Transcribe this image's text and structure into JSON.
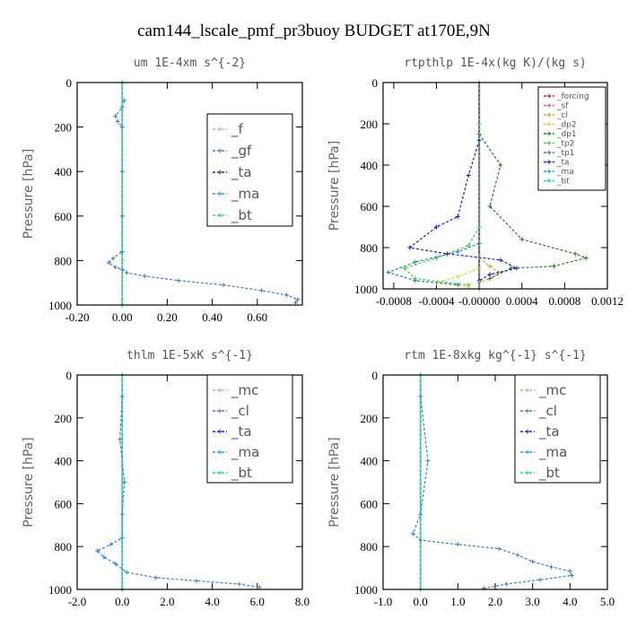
{
  "title": "cam144_lscale_pmf_pr3buoy  BUDGET at170E,9N",
  "chart_data": [
    {
      "type": "line",
      "title": "um   1E-4xm s^{-2}",
      "ylabel": "Pressure [hPa]",
      "xlim": [
        -0.2,
        0.8
      ],
      "ylim": [
        1000,
        0
      ],
      "xticks": [
        "-0.20",
        "0.00",
        "0.20",
        "0.40",
        "0.60"
      ],
      "xtick_values": [
        -0.2,
        0.0,
        0.2,
        0.4,
        0.6
      ],
      "yticks": [
        0,
        200,
        400,
        600,
        800,
        1000
      ],
      "legend_position": "top-right",
      "series": [
        {
          "name": "_f",
          "color": "#7ddb7d",
          "points": [
            [
              0,
              0
            ],
            [
              0,
              200
            ],
            [
              0,
              400
            ],
            [
              0,
              600
            ],
            [
              0,
              800
            ],
            [
              0,
              1000
            ]
          ]
        },
        {
          "name": "_gf",
          "color": "#3a7fd0",
          "points": [
            [
              0.01,
              80
            ],
            [
              0.0,
              110
            ],
            [
              -0.03,
              150
            ],
            [
              -0.02,
              175
            ],
            [
              0.0,
              200
            ],
            [
              0.0,
              400
            ],
            [
              0.0,
              600
            ],
            [
              0.0,
              760
            ],
            [
              -0.04,
              790
            ],
            [
              -0.06,
              810
            ],
            [
              -0.03,
              830
            ],
            [
              0.0,
              840
            ],
            [
              0.02,
              855
            ],
            [
              0.1,
              870
            ],
            [
              0.25,
              890
            ],
            [
              0.45,
              910
            ],
            [
              0.62,
              935
            ],
            [
              0.73,
              955
            ],
            [
              0.78,
              975
            ],
            [
              0.77,
              990
            ]
          ]
        },
        {
          "name": "_ta",
          "color": "#2020c8",
          "points": [
            [
              0,
              0
            ],
            [
              0,
              1000
            ]
          ]
        },
        {
          "name": "_ma",
          "color": "#20a0c0",
          "points": [
            [
              0,
              0
            ],
            [
              0,
              1000
            ]
          ]
        },
        {
          "name": "_bt",
          "color": "#10d0d0",
          "points": [
            [
              0,
              0
            ],
            [
              0,
              1000
            ]
          ]
        }
      ]
    },
    {
      "type": "line",
      "title": "rtpthlp   1E-4x(kg K)/(kg s)",
      "ylabel": "Pressure [hPa]",
      "xlim": [
        -0.0009,
        0.0012
      ],
      "ylim": [
        1000,
        0
      ],
      "xticks": [
        "-0.0008",
        "-0.0004",
        "-0.00000",
        "0.0004",
        "0.0008",
        "0.0012"
      ],
      "xtick_values": [
        -0.0008,
        -0.0004,
        0.0,
        0.0004,
        0.0008,
        0.0012
      ],
      "yticks": [
        0,
        200,
        400,
        600,
        800,
        1000
      ],
      "legend_position": "top-right",
      "series": [
        {
          "name": "_forcing",
          "color": "#d02020",
          "points": [
            [
              0,
              0
            ],
            [
              0,
              1000
            ]
          ]
        },
        {
          "name": "_sf",
          "color": "#e06060",
          "points": [
            [
              0,
              0
            ],
            [
              0,
              1000
            ]
          ]
        },
        {
          "name": "_cl",
          "color": "#e0a020",
          "points": [
            [
              0,
              850
            ],
            [
              0.0001,
              890
            ],
            [
              0.00018,
              920
            ],
            [
              0.0001,
              950
            ],
            [
              0,
              970
            ]
          ]
        },
        {
          "name": "_dp2",
          "color": "#e8d020",
          "points": [
            [
              0,
              900
            ],
            [
              -0.0002,
              940
            ],
            [
              -0.0004,
              970
            ],
            [
              -0.0001,
              990
            ]
          ]
        },
        {
          "name": "_dp1",
          "color": "#208020",
          "points": [
            [
              0,
              250
            ],
            [
              0.0002,
              400
            ],
            [
              0.0001,
              600
            ],
            [
              0.0004,
              760
            ],
            [
              0.0009,
              830
            ],
            [
              0.001,
              850
            ],
            [
              0.0007,
              890
            ],
            [
              0.0003,
              900
            ],
            [
              0.0001,
              950
            ]
          ]
        },
        {
          "name": "_tp2",
          "color": "#40d040",
          "points": [
            [
              0,
              200
            ],
            [
              0,
              700
            ],
            [
              -0.0001,
              790
            ],
            [
              -0.0004,
              850
            ],
            [
              -0.0007,
              900
            ],
            [
              -0.0006,
              950
            ],
            [
              -0.0001,
              980
            ]
          ]
        },
        {
          "name": "_tp1",
          "color": "#2080b0",
          "points": [
            [
              0,
              780
            ],
            [
              -0.0002,
              820
            ],
            [
              -0.0006,
              870
            ],
            [
              -0.00085,
              920
            ],
            [
              -0.0006,
              960
            ],
            [
              -0.0002,
              980
            ]
          ]
        },
        {
          "name": "_ta",
          "color": "#2020c8",
          "points": [
            [
              0,
              280
            ],
            [
              -0.0001,
              450
            ],
            [
              -0.0002,
              650
            ],
            [
              -0.0004,
              700
            ],
            [
              -0.00065,
              800
            ],
            [
              -0.0003,
              830
            ],
            [
              0.0002,
              860
            ],
            [
              0.00035,
              900
            ],
            [
              0.0001,
              930
            ],
            [
              0,
              960
            ]
          ]
        },
        {
          "name": "_ma",
          "color": "#20a0c0",
          "points": [
            [
              0,
              0
            ],
            [
              0,
              1000
            ]
          ]
        },
        {
          "name": "_bt",
          "color": "#10d0d0",
          "points": [
            [
              0,
              0
            ],
            [
              0,
              1000
            ]
          ]
        }
      ]
    },
    {
      "type": "line",
      "title": "thlm   1E-5xK s^{-1}",
      "ylabel": "Pressure [hPa]",
      "xlim": [
        -2.0,
        8.0
      ],
      "ylim": [
        1000,
        0
      ],
      "xticks": [
        "-2.0",
        "0.0",
        "2.0",
        "4.0",
        "6.0",
        "8.0"
      ],
      "xtick_values": [
        -2.0,
        0.0,
        2.0,
        4.0,
        6.0,
        8.0
      ],
      "yticks": [
        0,
        200,
        400,
        600,
        800,
        1000
      ],
      "legend_position": "top-right",
      "series": [
        {
          "name": "_mc",
          "color": "#7ddb7d",
          "points": [
            [
              0,
              0
            ],
            [
              0,
              1000
            ]
          ]
        },
        {
          "name": "_cl",
          "color": "#3a7fd0",
          "points": [
            [
              0,
              100
            ],
            [
              -0.1,
              300
            ],
            [
              0.1,
              500
            ],
            [
              0,
              650
            ],
            [
              0,
              760
            ],
            [
              -0.5,
              790
            ],
            [
              -1.1,
              820
            ],
            [
              -0.8,
              850
            ],
            [
              -0.3,
              880
            ],
            [
              0.2,
              920
            ],
            [
              1.5,
              945
            ],
            [
              3.3,
              960
            ],
            [
              5.2,
              975
            ],
            [
              6.1,
              990
            ]
          ]
        },
        {
          "name": "_ta",
          "color": "#2020c8",
          "points": [
            [
              0,
              0
            ],
            [
              0,
              1000
            ]
          ]
        },
        {
          "name": "_ma",
          "color": "#20a0c0",
          "points": [
            [
              0,
              0
            ],
            [
              0,
              1000
            ]
          ]
        },
        {
          "name": "_bt",
          "color": "#10d0d0",
          "points": [
            [
              0,
              0
            ],
            [
              0,
              1000
            ]
          ]
        }
      ]
    },
    {
      "type": "line",
      "title": "rtm   1E-8xkg kg^{-1} s^{-1}",
      "ylabel": "Pressure [hPa]",
      "xlim": [
        -1.0,
        5.0
      ],
      "ylim": [
        1000,
        0
      ],
      "xticks": [
        "-1.0",
        "0.0",
        "1.0",
        "2.0",
        "3.0",
        "4.0",
        "5.0"
      ],
      "xtick_values": [
        -1.0,
        0.0,
        1.0,
        2.0,
        3.0,
        4.0,
        5.0
      ],
      "yticks": [
        0,
        200,
        400,
        600,
        800,
        1000
      ],
      "legend_position": "top-right",
      "series": [
        {
          "name": "_mc",
          "color": "#7ddb7d",
          "points": [
            [
              0,
              0
            ],
            [
              0,
              1000
            ]
          ]
        },
        {
          "name": "_cl",
          "color": "#3a7fd0",
          "points": [
            [
              0,
              100
            ],
            [
              0.2,
              400
            ],
            [
              0,
              650
            ],
            [
              -0.2,
              740
            ],
            [
              0,
              770
            ],
            [
              1.0,
              790
            ],
            [
              2.1,
              810
            ],
            [
              2.6,
              840
            ],
            [
              3.0,
              870
            ],
            [
              3.5,
              895
            ],
            [
              4.0,
              915
            ],
            [
              4.05,
              935
            ],
            [
              3.2,
              955
            ],
            [
              2.3,
              975
            ],
            [
              1.7,
              995
            ]
          ]
        },
        {
          "name": "_ta",
          "color": "#2020c8",
          "points": [
            [
              0,
              0
            ],
            [
              0,
              1000
            ]
          ]
        },
        {
          "name": "_ma",
          "color": "#20a0c0",
          "points": [
            [
              0,
              0
            ],
            [
              0,
              1000
            ]
          ]
        },
        {
          "name": "_bt",
          "color": "#10d0d0",
          "points": [
            [
              0,
              0
            ],
            [
              0,
              1000
            ]
          ]
        }
      ]
    }
  ]
}
